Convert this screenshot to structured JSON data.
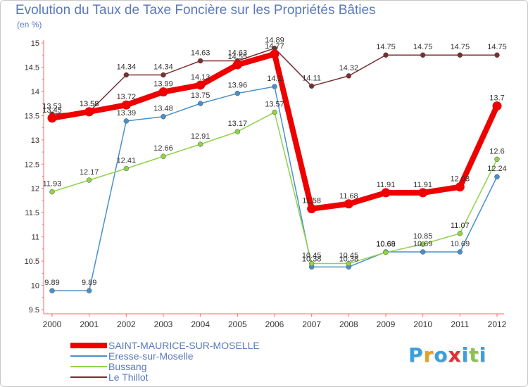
{
  "header": {
    "title": "Evolution du Taux de Taxe Foncière sur les Propriétés Bâties",
    "unit": "(en %)"
  },
  "brand": {
    "letters": [
      "P",
      "r",
      "o",
      "x",
      "i",
      "t",
      "i"
    ],
    "colors": [
      "#3aa0dc",
      "#e8a020",
      "#3aa0dc",
      "#e03030",
      "#3aa0dc",
      "#8bc34a",
      "#3aa0dc"
    ]
  },
  "chart_data": {
    "type": "line",
    "x": [
      "2000",
      "2001",
      "2002",
      "2003",
      "2004",
      "2005",
      "2006",
      "2007",
      "2008",
      "2009",
      "2010",
      "2011",
      "2012"
    ],
    "ylim": [
      9.5,
      15
    ],
    "yticks": [
      "9.5",
      "10",
      "10.5",
      "11",
      "11.5",
      "12",
      "12.5",
      "13",
      "13.5",
      "14",
      "14.5",
      "15"
    ],
    "grid": false,
    "legend_placement": "bottom-left",
    "series": [
      {
        "name": "Le Thillot",
        "color": "#7b2e2e",
        "values": [
          13.53,
          13.58,
          14.34,
          14.34,
          14.63,
          14.63,
          14.89,
          14.11,
          14.32,
          14.75,
          14.75,
          14.75,
          14.75
        ],
        "labels": [
          "13.53",
          "13.58",
          "14.34",
          "14.34",
          "14.63",
          "14.63",
          "14.89",
          "14.11",
          "14.32",
          "14.75",
          "14.75",
          "14.75",
          "14.75"
        ]
      },
      {
        "name": "Eresse-sur-Moselle",
        "color": "#4a90c8",
        "values": [
          9.89,
          9.89,
          13.39,
          13.48,
          13.75,
          13.96,
          14.1,
          10.38,
          10.38,
          10.69,
          10.69,
          10.69,
          12.24
        ],
        "labels": [
          "9.89",
          "9.89",
          "13.39",
          "13.48",
          "13.75",
          "13.96",
          "14.1",
          "10.38",
          "10.38",
          "10.69",
          "10.69",
          "10.69",
          "12.24"
        ]
      },
      {
        "name": "Bussang",
        "color": "#8ed34a",
        "values": [
          11.93,
          12.17,
          12.41,
          12.66,
          12.91,
          13.17,
          13.57,
          10.45,
          10.45,
          10.68,
          10.85,
          11.07,
          12.6
        ],
        "labels": [
          "11.93",
          "12.17",
          "12.41",
          "12.66",
          "12.91",
          "13.17",
          "13.57",
          "10.45",
          "10.45",
          "10.68",
          "10.85",
          "11.07",
          "12.6"
        ]
      },
      {
        "name": "SAINT-MAURICE-SUR-MOSELLE",
        "color": "#ee0000",
        "values": [
          13.45,
          13.58,
          13.72,
          13.99,
          14.13,
          14.55,
          14.77,
          11.58,
          11.68,
          11.91,
          11.91,
          12.03,
          13.7
        ],
        "labels": [
          "13.45",
          "13.58",
          "13.72",
          "13.99",
          "14.13",
          "14.55",
          "14.77",
          "11.58",
          "11.68",
          "11.91",
          "11.91",
          "12.03",
          "13.7"
        ]
      }
    ],
    "legend_order": [
      "SAINT-MAURICE-SUR-MOSELLE",
      "Eresse-sur-Moselle",
      "Bussang",
      "Le Thillot"
    ]
  }
}
